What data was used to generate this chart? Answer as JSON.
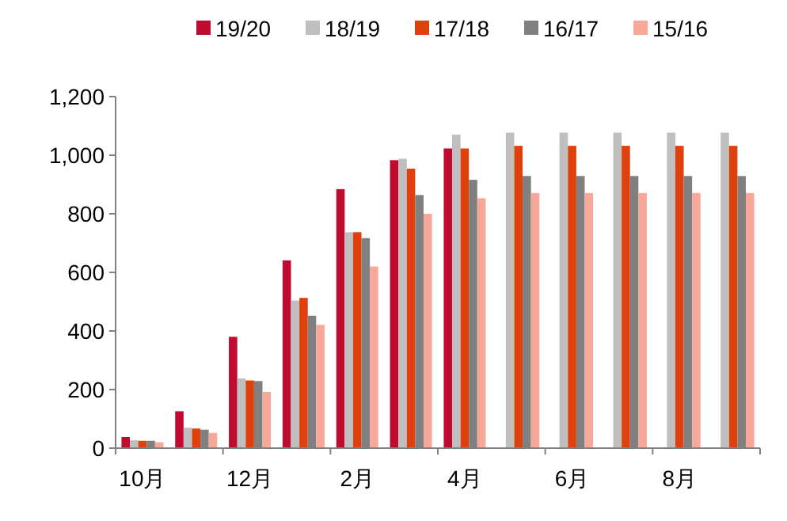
{
  "chart_data": {
    "type": "bar",
    "categories": [
      "10月",
      null,
      "12月",
      null,
      "2月",
      null,
      "4月",
      null,
      "6月",
      null,
      "8月",
      null
    ],
    "series": [
      {
        "name": "19/20",
        "color": "#c00a30",
        "values": [
          38,
          126,
          380,
          641,
          884,
          983,
          1023,
          null,
          null,
          null,
          null,
          null
        ]
      },
      {
        "name": "18/19",
        "color": "#bfbfbf",
        "values": [
          27,
          70,
          238,
          504,
          737,
          988,
          1070,
          1077,
          1077,
          1077,
          1077,
          1077
        ]
      },
      {
        "name": "17/18",
        "color": "#e0400c",
        "values": [
          25,
          67,
          231,
          513,
          737,
          954,
          1023,
          1032,
          1032,
          1032,
          1032,
          1032
        ]
      },
      {
        "name": "16/17",
        "color": "#808080",
        "values": [
          25,
          63,
          229,
          452,
          717,
          864,
          916,
          929,
          929,
          929,
          929,
          929
        ]
      },
      {
        "name": "15/16",
        "color": "#f8a898",
        "values": [
          20,
          52,
          192,
          421,
          620,
          800,
          853,
          871,
          871,
          871,
          871,
          871
        ]
      }
    ],
    "ylim": [
      0,
      1200
    ],
    "yticks": [
      0,
      200,
      400,
      600,
      800,
      {
        "value": 1000,
        "label": "1,000"
      },
      {
        "value": 1200,
        "label": "1,200"
      }
    ],
    "legend": "top"
  }
}
